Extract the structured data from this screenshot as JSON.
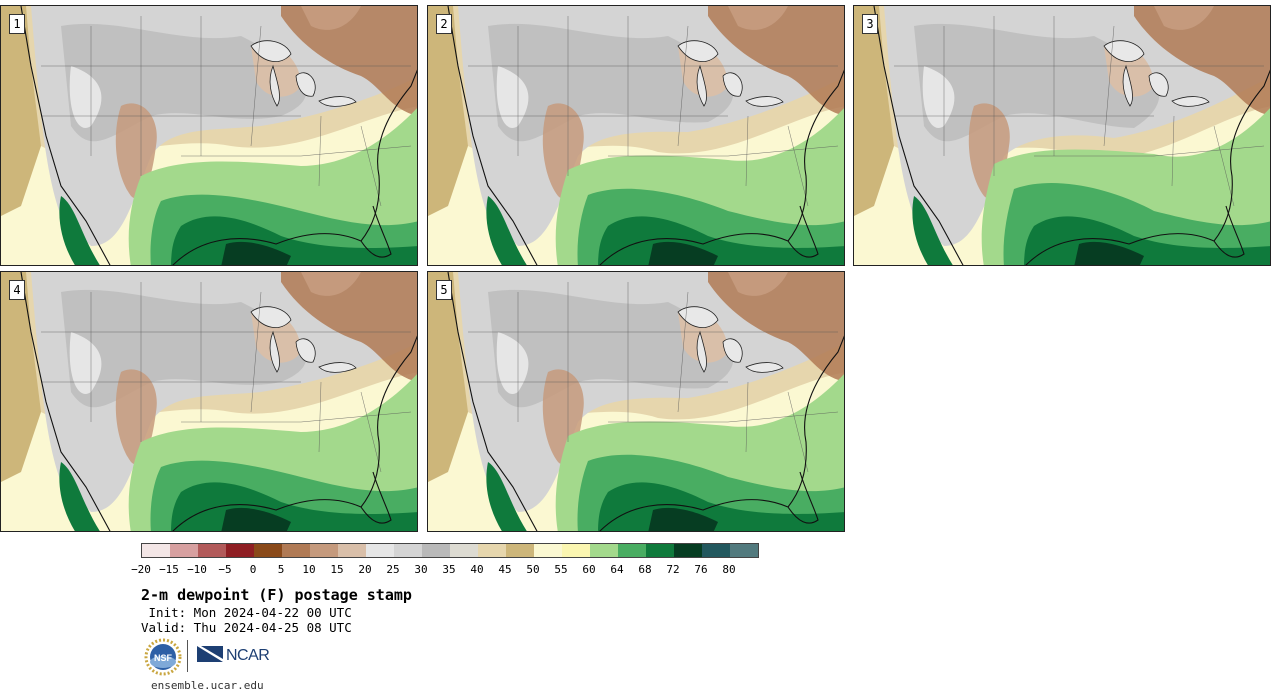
{
  "panels": [
    {
      "number": "1",
      "dry_shift": 0
    },
    {
      "number": "2",
      "dry_shift": 1
    },
    {
      "number": "3",
      "dry_shift": 2
    },
    {
      "number": "4",
      "dry_shift": 0
    },
    {
      "number": "5",
      "dry_shift": 1
    }
  ],
  "colorbar": {
    "colors": [
      "#f3e6e6",
      "#d7a0a0",
      "#b25a5a",
      "#8f1f24",
      "#8a4a1a",
      "#b07a55",
      "#c59a7d",
      "#d9bfa9",
      "#e6e6e6",
      "#d4d4d4",
      "#b9b9b9",
      "#dddbd2",
      "#e6d6ad",
      "#cdb67a",
      "#fbf8d2",
      "#fbf6b1",
      "#a3d98c",
      "#49ad62",
      "#0f7a3c",
      "#063d22",
      "#22585e",
      "#527a7e"
    ],
    "tick_labels": [
      "−20",
      "−15",
      "−10",
      "−5",
      "0",
      "5",
      "10",
      "15",
      "20",
      "25",
      "30",
      "35",
      "40",
      "45",
      "50",
      "55",
      "60",
      "64",
      "68",
      "72",
      "76",
      "80"
    ]
  },
  "title": "2-m dewpoint (F) postage stamp",
  "init": " Init: Mon 2024-04-22 00 UTC",
  "valid": "Valid: Thu 2024-04-25 08 UTC",
  "logos": {
    "nsf": "NSF",
    "ncar": "NCAR"
  },
  "footer": "ensemble.ucar.edu"
}
